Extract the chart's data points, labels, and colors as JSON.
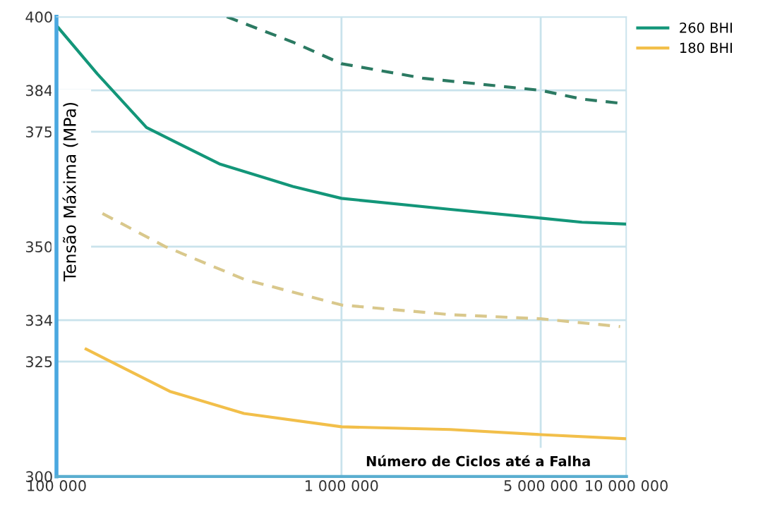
{
  "chart_data": {
    "type": "line",
    "xlabel": "Número de Ciclos até a Falha",
    "ylabel": "Tensão Máxima (MPa)",
    "log": "x",
    "grid": true,
    "legend": "top right",
    "marker": "none",
    "xlim": [
      100000,
      10000000
    ],
    "ylim": [
      300,
      400
    ],
    "xticks": [
      {
        "value": 100000,
        "label": "100 000"
      },
      {
        "value": 1000000,
        "label": "1 000 000"
      },
      {
        "value": 5000000,
        "label": "5 000 000"
      },
      {
        "value": 10000000,
        "label": "10 000 000"
      }
    ],
    "yticks": [
      300,
      325,
      334,
      350,
      375,
      384,
      400
    ],
    "series": [
      {
        "name": "260 BHI",
        "color": "#139679",
        "line_style": "solid",
        "x": [
          100000,
          139000,
          207000,
          373000,
          675000,
          1000000,
          2410000,
          5000000,
          6980000,
          10000000
        ],
        "values": [
          398.1,
          387.6,
          375.9,
          368.0,
          363.1,
          360.5,
          358.1,
          356.2,
          355.3,
          354.9
        ]
      },
      {
        "name": "180 BHI",
        "color": "#f2bf4a",
        "line_style": "solid",
        "x": [
          127000,
          250000,
          455000,
          1000000,
          2410000,
          5000000,
          10000000
        ],
        "values": [
          327.7,
          318.5,
          313.7,
          310.8,
          310.2,
          309.1,
          308.2
        ]
      },
      {
        "color": "#2b7a62",
        "line_style": "dashed",
        "x": [
          396000,
          675000,
          1000000,
          1950000,
          5000000,
          6980000,
          9500000
        ],
        "values": [
          400,
          394.5,
          389.8,
          386.6,
          384.0,
          382.1,
          381.2
        ]
      },
      {
        "color": "#d9c88c",
        "line_style": "dashed",
        "x": [
          145000,
          241000,
          455000,
          1000000,
          2410000,
          5000000,
          9500000
        ],
        "values": [
          357.2,
          350.0,
          342.9,
          337.3,
          335.2,
          334.3,
          332.6
        ]
      }
    ]
  }
}
